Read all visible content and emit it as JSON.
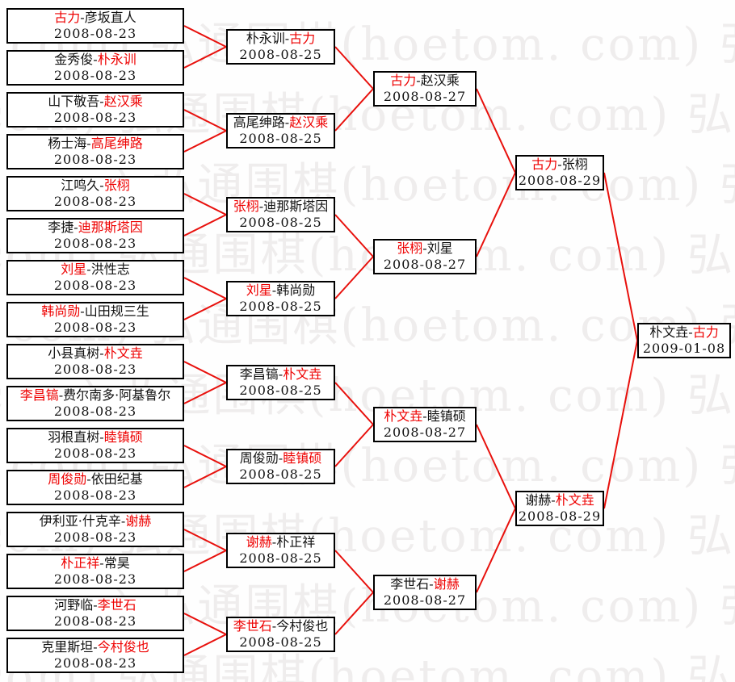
{
  "sep": "-",
  "watermark": {
    "text": "弘通围棋(hoetom. com)"
  },
  "colors": {
    "winner": "#ee0000",
    "connector": "#e8100c",
    "border": "#000000",
    "box_bg": "#ffffff",
    "page_bg": "#fefefe",
    "watermark": "#efeded"
  },
  "rounds": [
    {
      "name": "round-1",
      "date": "2008-08-23",
      "matches": [
        {
          "p1": "古力",
          "p1_win": true,
          "p2": "彦坂直人",
          "p2_win": false,
          "date": "2008-08-23"
        },
        {
          "p1": "金秀俊",
          "p1_win": false,
          "p2": "朴永训",
          "p2_win": true,
          "date": "2008-08-23"
        },
        {
          "p1": "山下敬吾",
          "p1_win": false,
          "p2": "赵汉乘",
          "p2_win": true,
          "date": "2008-08-23"
        },
        {
          "p1": "杨士海",
          "p1_win": false,
          "p2": "高尾绅路",
          "p2_win": true,
          "date": "2008-08-23"
        },
        {
          "p1": "江鸣久",
          "p1_win": false,
          "p2": "张栩",
          "p2_win": true,
          "date": "2008-08-23"
        },
        {
          "p1": "李捷",
          "p1_win": false,
          "p2": "迪那斯塔因",
          "p2_win": true,
          "date": "2008-08-23"
        },
        {
          "p1": "刘星",
          "p1_win": true,
          "p2": "洪性志",
          "p2_win": false,
          "date": "2008-08-23"
        },
        {
          "p1": "韩尚勋",
          "p1_win": true,
          "p2": "山田规三生",
          "p2_win": false,
          "date": "2008-08-23"
        },
        {
          "p1": "小县真树",
          "p1_win": false,
          "p2": "朴文垚",
          "p2_win": true,
          "date": "2008-08-23"
        },
        {
          "p1": "李昌镐",
          "p1_win": true,
          "p2": "费尔南多·阿基鲁尔",
          "p2_win": false,
          "date": "2008-08-23"
        },
        {
          "p1": "羽根直树",
          "p1_win": false,
          "p2": "睦镇硕",
          "p2_win": true,
          "date": "2008-08-23"
        },
        {
          "p1": "周俊勋",
          "p1_win": true,
          "p2": "依田纪基",
          "p2_win": false,
          "date": "2008-08-23"
        },
        {
          "p1": "伊利亚·什克辛",
          "p1_win": false,
          "p2": "谢赫",
          "p2_win": true,
          "date": "2008-08-23"
        },
        {
          "p1": "朴正祥",
          "p1_win": true,
          "p2": "常昊",
          "p2_win": false,
          "date": "2008-08-23"
        },
        {
          "p1": "河野临",
          "p1_win": false,
          "p2": "李世石",
          "p2_win": true,
          "date": "2008-08-23"
        },
        {
          "p1": "克里斯坦",
          "p1_win": false,
          "p2": "今村俊也",
          "p2_win": true,
          "date": "2008-08-23"
        }
      ]
    },
    {
      "name": "round-2",
      "date": "2008-08-25",
      "matches": [
        {
          "p1": "朴永训",
          "p1_win": false,
          "p2": "古力",
          "p2_win": true,
          "date": "2008-08-25"
        },
        {
          "p1": "高尾绅路",
          "p1_win": false,
          "p2": "赵汉乘",
          "p2_win": true,
          "date": "2008-08-25"
        },
        {
          "p1": "张栩",
          "p1_win": true,
          "p2": "迪那斯塔因",
          "p2_win": false,
          "date": "2008-08-25"
        },
        {
          "p1": "刘星",
          "p1_win": true,
          "p2": "韩尚勋",
          "p2_win": false,
          "date": "2008-08-25"
        },
        {
          "p1": "李昌镐",
          "p1_win": false,
          "p2": "朴文垚",
          "p2_win": true,
          "date": "2008-08-25"
        },
        {
          "p1": "周俊勋",
          "p1_win": false,
          "p2": "睦镇硕",
          "p2_win": true,
          "date": "2008-08-25"
        },
        {
          "p1": "谢赫",
          "p1_win": true,
          "p2": "朴正祥",
          "p2_win": false,
          "date": "2008-08-25"
        },
        {
          "p1": "李世石",
          "p1_win": true,
          "p2": "今村俊也",
          "p2_win": false,
          "date": "2008-08-25"
        }
      ]
    },
    {
      "name": "quarterfinals",
      "date": "2008-08-27",
      "matches": [
        {
          "p1": "古力",
          "p1_win": true,
          "p2": "赵汉乘",
          "p2_win": false,
          "date": "2008-08-27"
        },
        {
          "p1": "张栩",
          "p1_win": true,
          "p2": "刘星",
          "p2_win": false,
          "date": "2008-08-27"
        },
        {
          "p1": "朴文垚",
          "p1_win": true,
          "p2": "睦镇硕",
          "p2_win": false,
          "date": "2008-08-27"
        },
        {
          "p1": "李世石",
          "p1_win": false,
          "p2": "谢赫",
          "p2_win": true,
          "date": "2008-08-27"
        }
      ]
    },
    {
      "name": "semifinals",
      "date": "2008-08-29",
      "matches": [
        {
          "p1": "古力",
          "p1_win": true,
          "p2": "张栩",
          "p2_win": false,
          "date": "2008-08-29"
        },
        {
          "p1": "谢赫",
          "p1_win": false,
          "p2": "朴文垚",
          "p2_win": true,
          "date": "2008-08-29"
        }
      ]
    },
    {
      "name": "final",
      "date": "2009-01-08",
      "matches": [
        {
          "p1": "朴文垚",
          "p1_win": false,
          "p2": "古力",
          "p2_win": true,
          "date": "2009-01-08"
        }
      ]
    }
  ]
}
